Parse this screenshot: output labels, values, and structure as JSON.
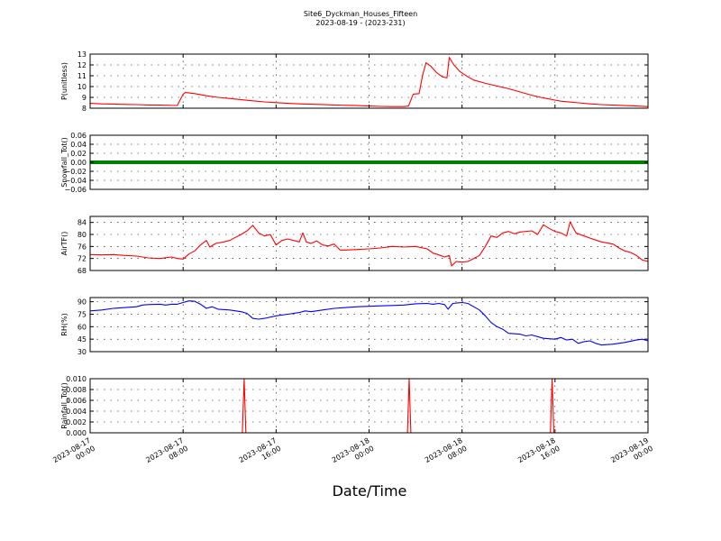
{
  "chart_data": {
    "type": "line",
    "title": "Site6_Dyckman_Houses_Fifteen",
    "subtitle": "2023-08-19 - (2023-231)",
    "xlabel": "Date/Time",
    "x_ticks": [
      "2023-08-17\n00:00",
      "2023-08-17\n08:00",
      "2023-08-17\n16:00",
      "2023-08-18\n00:00",
      "2023-08-18\n08:00",
      "2023-08-18\n16:00",
      "2023-08-19\n00:00"
    ],
    "x_range_hours": [
      0,
      48
    ],
    "grid": true,
    "panels": [
      {
        "ylabel": "P(unitless)",
        "ylim": [
          8,
          13
        ],
        "yticks": [
          8,
          9,
          10,
          11,
          12,
          13
        ],
        "color": "#ff0000",
        "series": [
          [
            0,
            8.45
          ],
          [
            1,
            8.4
          ],
          [
            2,
            8.38
          ],
          [
            3,
            8.35
          ],
          [
            4,
            8.33
          ],
          [
            5,
            8.3
          ],
          [
            6,
            8.28
          ],
          [
            7.5,
            8.25
          ],
          [
            8,
            9.3
          ],
          [
            8.2,
            9.45
          ],
          [
            9,
            9.35
          ],
          [
            10,
            9.15
          ],
          [
            11,
            9.0
          ],
          [
            12,
            8.9
          ],
          [
            13,
            8.78
          ],
          [
            14,
            8.68
          ],
          [
            15,
            8.58
          ],
          [
            16,
            8.52
          ],
          [
            17,
            8.45
          ],
          [
            18,
            8.4
          ],
          [
            19,
            8.37
          ],
          [
            20,
            8.34
          ],
          [
            21,
            8.3
          ],
          [
            22,
            8.27
          ],
          [
            23,
            8.24
          ],
          [
            24,
            8.2
          ],
          [
            25,
            8.17
          ],
          [
            26,
            8.15
          ],
          [
            27,
            8.15
          ],
          [
            27.4,
            8.2
          ],
          [
            27.8,
            9.3
          ],
          [
            28.3,
            9.35
          ],
          [
            28.6,
            11.0
          ],
          [
            28.9,
            12.2
          ],
          [
            29.3,
            11.9
          ],
          [
            29.8,
            11.3
          ],
          [
            30.3,
            10.9
          ],
          [
            30.7,
            10.8
          ],
          [
            30.9,
            12.7
          ],
          [
            31.3,
            12.0
          ],
          [
            31.8,
            11.4
          ],
          [
            32.5,
            10.9
          ],
          [
            33,
            10.6
          ],
          [
            34,
            10.3
          ],
          [
            35,
            10.05
          ],
          [
            36,
            9.8
          ],
          [
            37,
            9.5
          ],
          [
            38,
            9.2
          ],
          [
            39,
            8.95
          ],
          [
            40,
            8.75
          ],
          [
            40.5,
            8.65
          ],
          [
            41,
            8.6
          ],
          [
            42,
            8.5
          ],
          [
            43,
            8.4
          ],
          [
            44,
            8.33
          ],
          [
            45,
            8.28
          ],
          [
            46,
            8.24
          ],
          [
            47,
            8.2
          ],
          [
            48,
            8.15
          ]
        ]
      },
      {
        "ylabel": "Snowfall_Tot()",
        "ylim": [
          -0.06,
          0.06
        ],
        "yticks": [
          -0.06,
          -0.04,
          -0.02,
          0.0,
          0.02,
          0.04,
          0.06
        ],
        "tick_labels": [
          "−0.06",
          "−0.04",
          "−0.02",
          "0.00",
          "0.02",
          "0.04",
          "0.06"
        ],
        "color": "#008000",
        "series": [
          [
            0,
            0
          ],
          [
            48,
            0
          ]
        ]
      },
      {
        "ylabel": "AirTF()",
        "ylim": [
          68,
          86
        ],
        "yticks": [
          68,
          72,
          76,
          80,
          84
        ],
        "color": "#ff0000",
        "series": [
          [
            0,
            73.3
          ],
          [
            1,
            73.2
          ],
          [
            2,
            73.3
          ],
          [
            3,
            73.0
          ],
          [
            4,
            72.8
          ],
          [
            5,
            72.2
          ],
          [
            6,
            72.0
          ],
          [
            7,
            72.5
          ],
          [
            7.5,
            72.0
          ],
          [
            8,
            71.8
          ],
          [
            8.5,
            73.5
          ],
          [
            9,
            74.5
          ],
          [
            9.5,
            76.5
          ],
          [
            10,
            78.0
          ],
          [
            10.3,
            75.8
          ],
          [
            10.8,
            77.0
          ],
          [
            11.5,
            77.5
          ],
          [
            12,
            78.0
          ],
          [
            12.5,
            79.0
          ],
          [
            13,
            80.0
          ],
          [
            13.5,
            81.2
          ],
          [
            14,
            83.0
          ],
          [
            14.5,
            80.5
          ],
          [
            15,
            79.5
          ],
          [
            15.5,
            80.0
          ],
          [
            16,
            76.5
          ],
          [
            16.5,
            78.0
          ],
          [
            17,
            78.5
          ],
          [
            17.5,
            78.0
          ],
          [
            18,
            77.5
          ],
          [
            18.3,
            80.5
          ],
          [
            18.6,
            77.5
          ],
          [
            19,
            77.0
          ],
          [
            19.5,
            77.8
          ],
          [
            20,
            76.5
          ],
          [
            20.5,
            76.2
          ],
          [
            21,
            76.8
          ],
          [
            21.5,
            74.8
          ],
          [
            22,
            74.8
          ],
          [
            23,
            75.0
          ],
          [
            24,
            75.2
          ],
          [
            25,
            75.5
          ],
          [
            26,
            76.0
          ],
          [
            27,
            75.8
          ],
          [
            28,
            76.0
          ],
          [
            29,
            75.2
          ],
          [
            29.5,
            73.8
          ],
          [
            30,
            73.2
          ],
          [
            30.5,
            72.5
          ],
          [
            30.9,
            73.0
          ],
          [
            31.1,
            69.5
          ],
          [
            31.5,
            71.0
          ],
          [
            32,
            70.8
          ],
          [
            32.5,
            71.0
          ],
          [
            33,
            72.0
          ],
          [
            33.5,
            73.0
          ],
          [
            34,
            76.0
          ],
          [
            34.5,
            79.5
          ],
          [
            35,
            79.0
          ],
          [
            35.5,
            80.5
          ],
          [
            36,
            81.0
          ],
          [
            36.5,
            80.2
          ],
          [
            37,
            80.8
          ],
          [
            38,
            81.2
          ],
          [
            38.5,
            80.0
          ],
          [
            39,
            83.2
          ],
          [
            39.5,
            82.0
          ],
          [
            40,
            81.0
          ],
          [
            40.5,
            80.5
          ],
          [
            41,
            79.5
          ],
          [
            41.3,
            84.2
          ],
          [
            41.8,
            80.5
          ],
          [
            42.5,
            79.5
          ],
          [
            43,
            78.8
          ],
          [
            44,
            77.5
          ],
          [
            45,
            76.8
          ],
          [
            45.5,
            75.5
          ],
          [
            46,
            74.5
          ],
          [
            46.5,
            74.0
          ],
          [
            47,
            73.0
          ],
          [
            47.5,
            71.5
          ],
          [
            48,
            71.0
          ]
        ]
      },
      {
        "ylabel": "RH(%)",
        "ylim": [
          30,
          95
        ],
        "yticks": [
          30,
          45,
          60,
          75,
          90
        ],
        "color": "#0000ff",
        "series": [
          [
            0,
            79
          ],
          [
            1,
            80
          ],
          [
            2,
            82
          ],
          [
            3,
            83
          ],
          [
            4,
            84
          ],
          [
            4.5,
            86
          ],
          [
            5,
            86.5
          ],
          [
            6,
            87
          ],
          [
            6.5,
            86
          ],
          [
            7,
            87
          ],
          [
            7.5,
            87
          ],
          [
            8,
            89
          ],
          [
            8.5,
            91
          ],
          [
            9,
            90.5
          ],
          [
            9.5,
            87
          ],
          [
            10,
            82
          ],
          [
            10.5,
            84
          ],
          [
            11,
            81
          ],
          [
            12,
            80
          ],
          [
            13,
            78
          ],
          [
            13.5,
            76
          ],
          [
            14,
            70
          ],
          [
            14.5,
            69
          ],
          [
            15,
            70
          ],
          [
            16,
            73
          ],
          [
            17,
            75
          ],
          [
            18,
            77
          ],
          [
            18.5,
            79
          ],
          [
            19,
            78
          ],
          [
            20,
            80
          ],
          [
            21,
            82
          ],
          [
            22,
            83
          ],
          [
            23,
            84
          ],
          [
            24,
            84.5
          ],
          [
            25,
            85
          ],
          [
            26,
            85.5
          ],
          [
            27,
            86
          ],
          [
            28,
            87.5
          ],
          [
            29,
            88
          ],
          [
            29.5,
            87
          ],
          [
            30,
            88
          ],
          [
            30.5,
            86.5
          ],
          [
            30.8,
            81
          ],
          [
            31.2,
            88
          ],
          [
            32,
            89
          ],
          [
            32.5,
            88
          ],
          [
            33,
            84
          ],
          [
            33.5,
            80
          ],
          [
            34,
            73
          ],
          [
            34.5,
            65
          ],
          [
            35,
            60
          ],
          [
            35.5,
            57
          ],
          [
            36,
            52
          ],
          [
            37,
            51
          ],
          [
            37.5,
            49
          ],
          [
            38,
            50
          ],
          [
            39,
            46
          ],
          [
            40,
            45
          ],
          [
            40.5,
            47
          ],
          [
            41,
            44
          ],
          [
            41.5,
            45
          ],
          [
            42,
            40
          ],
          [
            42.5,
            42
          ],
          [
            43,
            43
          ],
          [
            43.5,
            40
          ],
          [
            44,
            38
          ],
          [
            45,
            39
          ],
          [
            46,
            41
          ],
          [
            47,
            44
          ],
          [
            47.5,
            45
          ],
          [
            48,
            43
          ]
        ]
      },
      {
        "ylabel": "Rainfall_Tot()",
        "ylim": [
          0,
          0.01
        ],
        "yticks": [
          0.0,
          0.002,
          0.004,
          0.006,
          0.008,
          0.01
        ],
        "tick_labels": [
          "0.000",
          "0.002",
          "0.004",
          "0.006",
          "0.008",
          "0.010"
        ],
        "color": "#ff0000",
        "series": [
          [
            0,
            0
          ],
          [
            13.1,
            0
          ],
          [
            13.25,
            0.01
          ],
          [
            13.4,
            0
          ],
          [
            27.3,
            0
          ],
          [
            27.45,
            0.01
          ],
          [
            27.6,
            0
          ],
          [
            39.6,
            0
          ],
          [
            39.75,
            0.01
          ],
          [
            39.9,
            0
          ],
          [
            48,
            0
          ]
        ]
      }
    ]
  }
}
